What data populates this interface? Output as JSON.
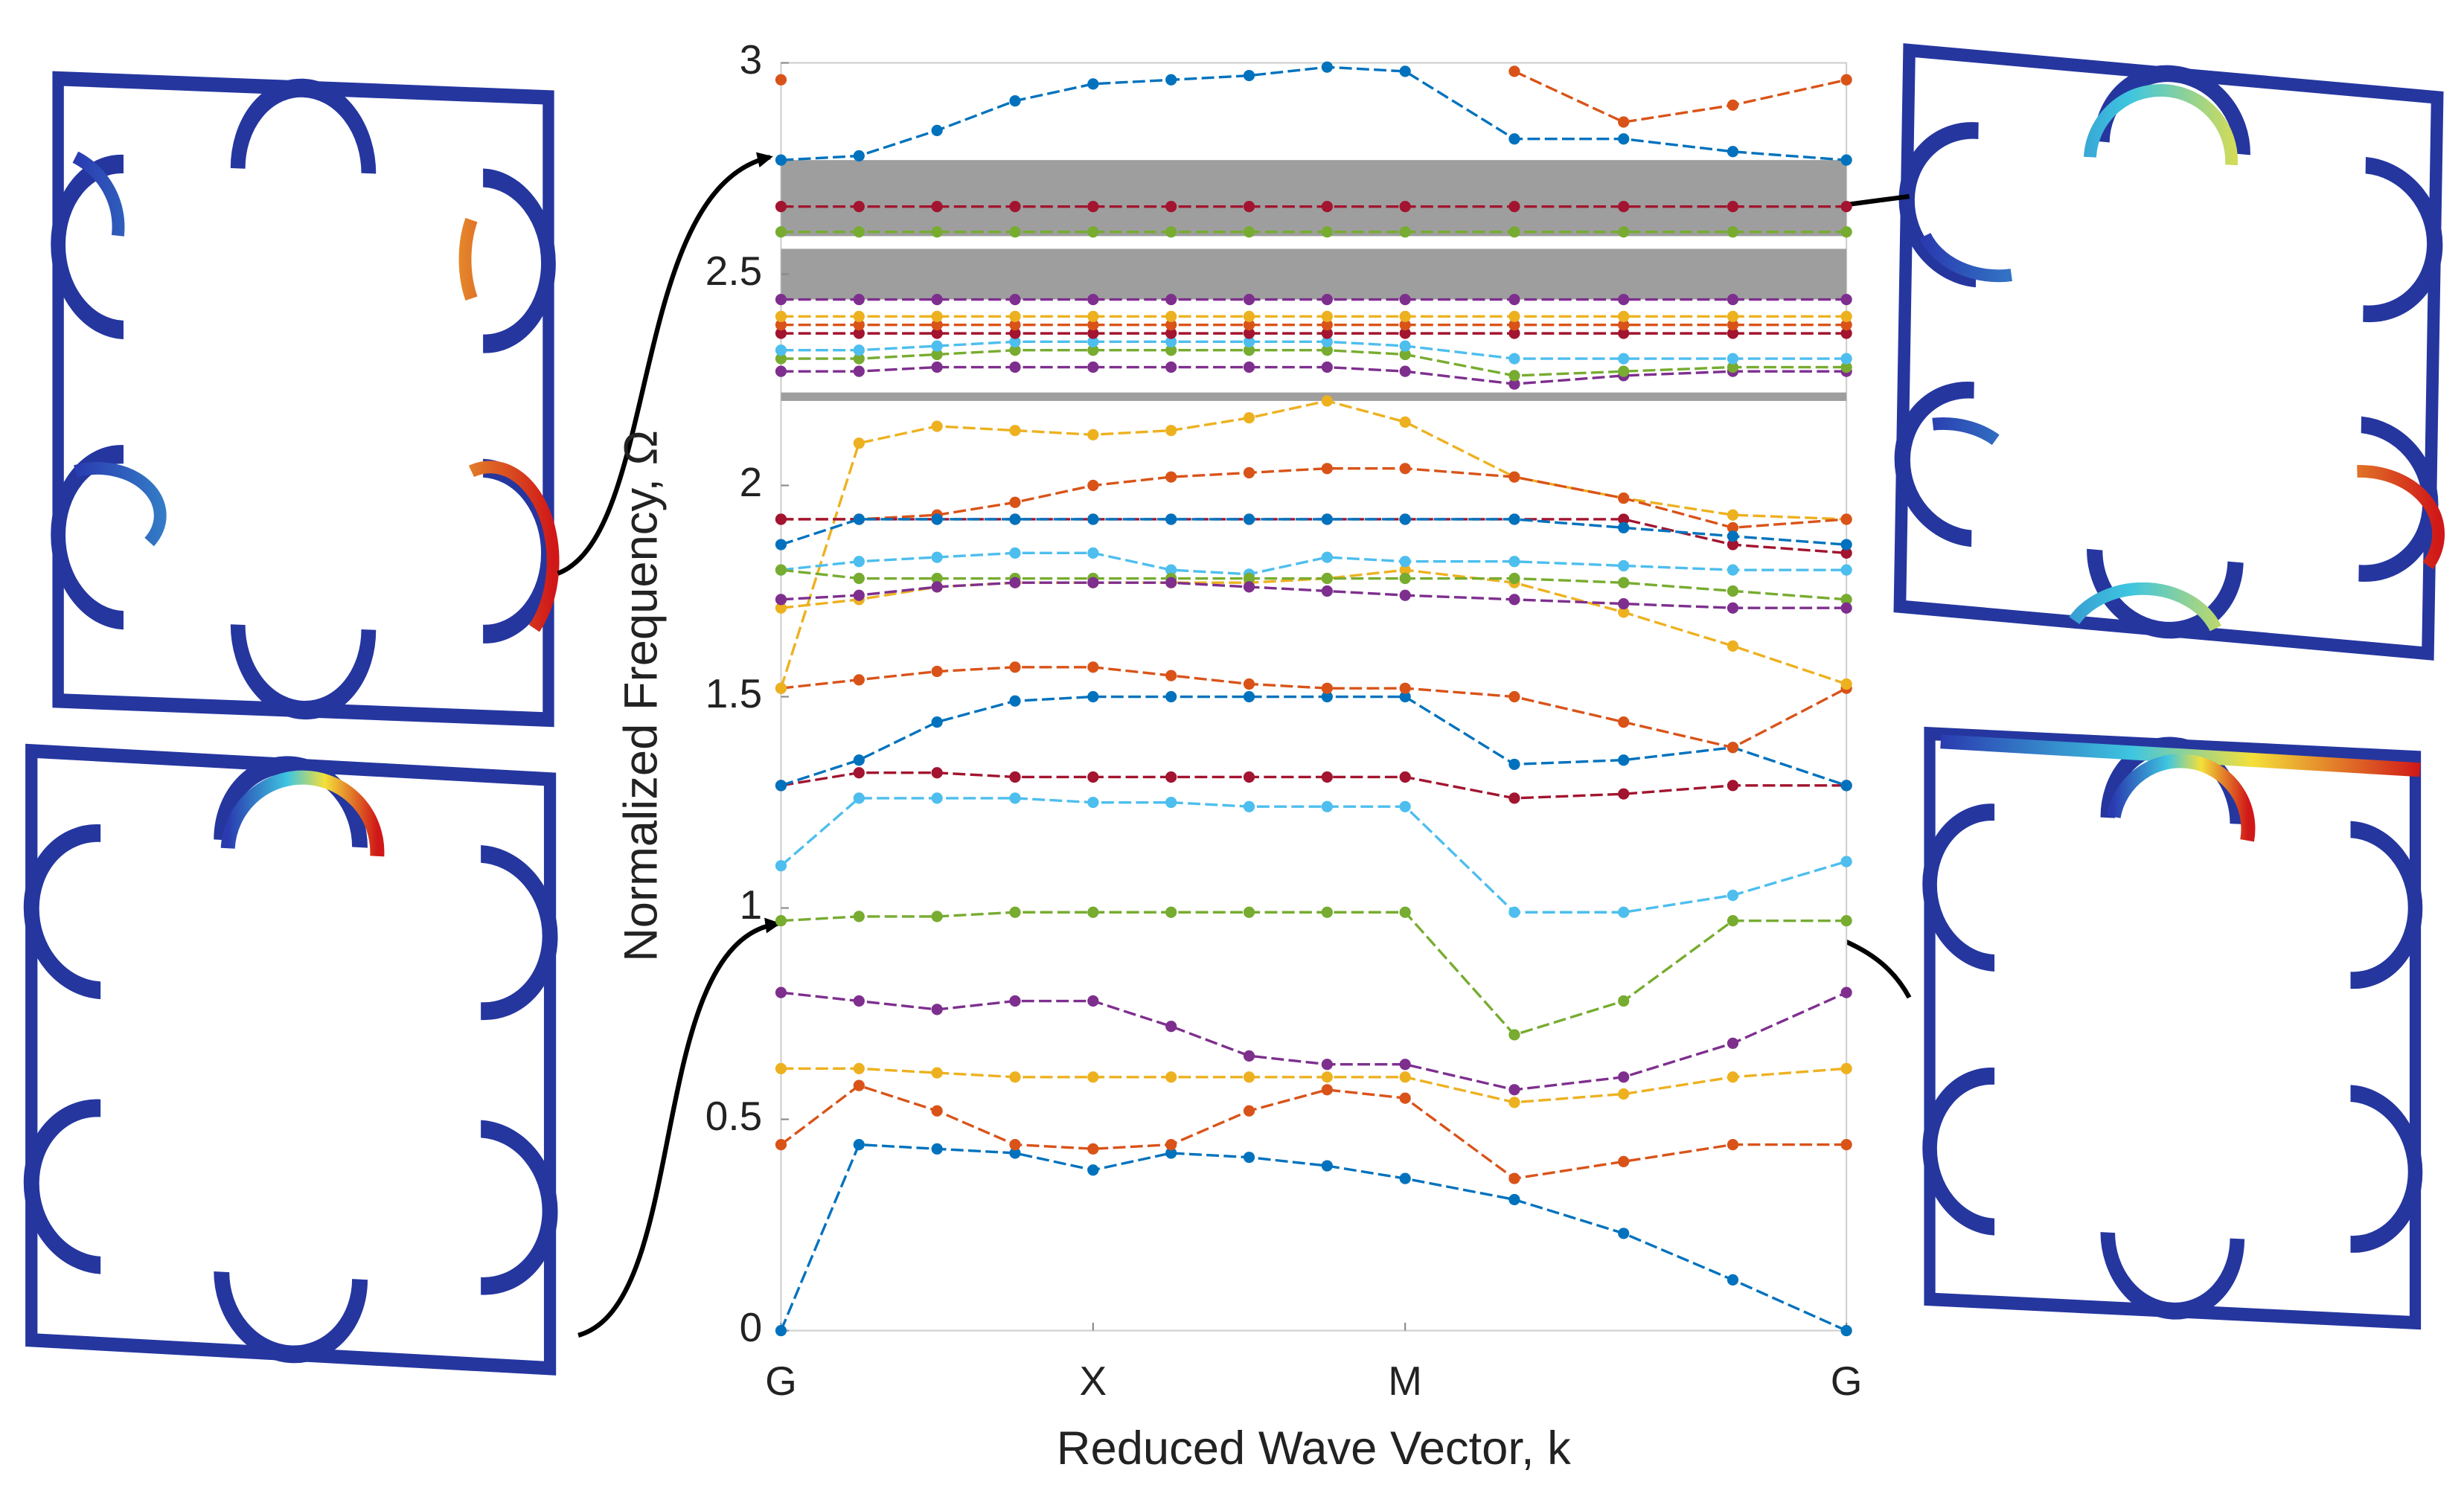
{
  "chart_data": {
    "type": "line",
    "xlabel": "Reduced Wave Vector,  k",
    "ylabel": "Normalized Frequency, Ω",
    "x": [
      0,
      0.25,
      0.5,
      0.75,
      1,
      1.25,
      1.5,
      1.75,
      2,
      2.35,
      2.7,
      3.05,
      3.414
    ],
    "xlim": [
      0,
      3.414
    ],
    "xticks": [
      {
        "value": 0,
        "label": "G"
      },
      {
        "value": 1,
        "label": "X"
      },
      {
        "value": 2,
        "label": "M"
      },
      {
        "value": 3.414,
        "label": "G"
      }
    ],
    "ylim": [
      0,
      3
    ],
    "yticks": [
      0,
      0.5,
      1,
      1.5,
      2,
      2.5,
      3
    ],
    "bandgaps": [
      [
        2.59,
        2.77
      ],
      [
        2.44,
        2.56
      ],
      [
        2.2,
        2.22
      ]
    ],
    "bandgap_color": "#9e9e9e",
    "series": [
      {
        "color": "#0072BD",
        "values": [
          0,
          0.44,
          0.43,
          0.42,
          0.38,
          0.42,
          0.41,
          0.39,
          0.36,
          0.31,
          0.23,
          0.12,
          0
        ]
      },
      {
        "color": "#D95319",
        "values": [
          0.44,
          0.58,
          0.52,
          0.44,
          0.43,
          0.44,
          0.52,
          0.57,
          0.55,
          0.36,
          0.4,
          0.44,
          0.44
        ]
      },
      {
        "color": "#EDB120",
        "values": [
          0.62,
          0.62,
          0.61,
          0.6,
          0.6,
          0.6,
          0.6,
          0.6,
          0.6,
          0.54,
          0.56,
          0.6,
          0.62
        ]
      },
      {
        "color": "#7E2F8E",
        "values": [
          0.8,
          0.78,
          0.76,
          0.78,
          0.78,
          0.72,
          0.65,
          0.63,
          0.63,
          0.57,
          0.6,
          0.68,
          0.8
        ]
      },
      {
        "color": "#77AC30",
        "values": [
          0.97,
          0.98,
          0.98,
          0.99,
          0.99,
          0.99,
          0.99,
          0.99,
          0.99,
          0.7,
          0.78,
          0.97,
          0.97
        ]
      },
      {
        "color": "#4DBEEE",
        "values": [
          1.1,
          1.26,
          1.26,
          1.26,
          1.25,
          1.25,
          1.24,
          1.24,
          1.24,
          0.99,
          0.99,
          1.03,
          1.11
        ]
      },
      {
        "color": "#A2142F",
        "values": [
          1.29,
          1.32,
          1.32,
          1.31,
          1.31,
          1.31,
          1.31,
          1.31,
          1.31,
          1.26,
          1.27,
          1.29,
          1.29
        ]
      },
      {
        "color": "#0072BD",
        "values": [
          1.29,
          1.35,
          1.44,
          1.49,
          1.5,
          1.5,
          1.5,
          1.5,
          1.5,
          1.34,
          1.35,
          1.38,
          1.29
        ]
      },
      {
        "color": "#D95319",
        "values": [
          1.52,
          1.54,
          1.56,
          1.57,
          1.57,
          1.55,
          1.53,
          1.52,
          1.52,
          1.5,
          1.44,
          1.38,
          1.52
        ]
      },
      {
        "color": "#EDB120",
        "values": [
          1.52,
          2.1,
          2.14,
          2.13,
          2.12,
          2.13,
          2.16,
          2.2,
          2.15,
          2.02,
          1.97,
          1.93,
          1.92
        ]
      },
      {
        "color": "#EDB120",
        "values": [
          1.71,
          1.73,
          1.76,
          1.77,
          1.77,
          1.77,
          1.77,
          1.78,
          1.8,
          1.77,
          1.7,
          1.62,
          1.53
        ]
      },
      {
        "color": "#D95319",
        "values": [
          1.92,
          1.92,
          1.93,
          1.96,
          2,
          2.02,
          2.03,
          2.04,
          2.04,
          2.02,
          1.97,
          1.9,
          1.92
        ]
      },
      {
        "color": "#A2142F",
        "values": [
          1.92,
          1.92,
          1.92,
          1.92,
          1.92,
          1.92,
          1.92,
          1.92,
          1.92,
          1.92,
          1.92,
          1.86,
          1.84
        ]
      },
      {
        "color": "#0072BD",
        "values": [
          1.86,
          1.92,
          1.92,
          1.92,
          1.92,
          1.92,
          1.92,
          1.92,
          1.92,
          1.92,
          1.9,
          1.88,
          1.86
        ]
      },
      {
        "color": "#4DBEEE",
        "values": [
          1.8,
          1.82,
          1.83,
          1.84,
          1.84,
          1.8,
          1.79,
          1.83,
          1.82,
          1.82,
          1.81,
          1.8,
          1.8
        ]
      },
      {
        "color": "#77AC30",
        "values": [
          1.8,
          1.78,
          1.78,
          1.78,
          1.78,
          1.78,
          1.78,
          1.78,
          1.78,
          1.78,
          1.77,
          1.75,
          1.73
        ]
      },
      {
        "color": "#7E2F8E",
        "values": [
          1.73,
          1.74,
          1.76,
          1.77,
          1.77,
          1.77,
          1.76,
          1.75,
          1.74,
          1.73,
          1.72,
          1.71,
          1.71
        ]
      },
      {
        "color": "#7E2F8E",
        "values": [
          2.27,
          2.27,
          2.28,
          2.28,
          2.28,
          2.28,
          2.28,
          2.28,
          2.27,
          2.24,
          2.26,
          2.27,
          2.27
        ]
      },
      {
        "color": "#77AC30",
        "values": [
          2.3,
          2.3,
          2.31,
          2.32,
          2.32,
          2.32,
          2.32,
          2.32,
          2.31,
          2.26,
          2.27,
          2.28,
          2.28
        ]
      },
      {
        "color": "#4DBEEE",
        "values": [
          2.32,
          2.32,
          2.33,
          2.34,
          2.34,
          2.34,
          2.34,
          2.34,
          2.33,
          2.3,
          2.3,
          2.3,
          2.3
        ]
      },
      {
        "color": "#A2142F",
        "values": [
          2.36,
          2.36,
          2.36,
          2.36,
          2.36,
          2.36,
          2.36,
          2.36,
          2.36,
          2.36,
          2.36,
          2.36,
          2.36
        ]
      },
      {
        "color": "#D95319",
        "values": [
          2.38,
          2.38,
          2.38,
          2.38,
          2.38,
          2.38,
          2.38,
          2.38,
          2.38,
          2.38,
          2.38,
          2.38,
          2.38
        ]
      },
      {
        "color": "#EDB120",
        "values": [
          2.4,
          2.4,
          2.4,
          2.4,
          2.4,
          2.4,
          2.4,
          2.4,
          2.4,
          2.4,
          2.4,
          2.4,
          2.4
        ]
      },
      {
        "color": "#7E2F8E",
        "values": [
          2.44,
          2.44,
          2.44,
          2.44,
          2.44,
          2.44,
          2.44,
          2.44,
          2.44,
          2.44,
          2.44,
          2.44,
          2.44
        ]
      },
      {
        "color": "#77AC30",
        "values": [
          2.6,
          2.6,
          2.6,
          2.6,
          2.6,
          2.6,
          2.6,
          2.6,
          2.6,
          2.6,
          2.6,
          2.6,
          2.6
        ]
      },
      {
        "color": "#A2142F",
        "values": [
          2.66,
          2.66,
          2.66,
          2.66,
          2.66,
          2.66,
          2.66,
          2.66,
          2.66,
          2.66,
          2.66,
          2.66,
          2.66
        ]
      },
      {
        "color": "#0072BD",
        "values": [
          2.77,
          2.78,
          2.84,
          2.91,
          2.95,
          2.96,
          2.97,
          2.99,
          2.98,
          2.82,
          2.82,
          2.79,
          2.77
        ]
      },
      {
        "color": "#D95319",
        "values": [
          2.96,
          null,
          null,
          null,
          null,
          null,
          null,
          null,
          null,
          2.98,
          2.86,
          2.9,
          2.96
        ]
      }
    ]
  }
}
